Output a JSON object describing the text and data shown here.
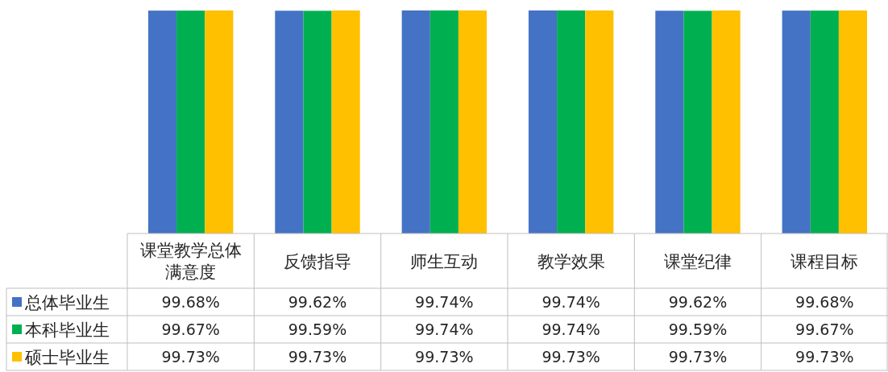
{
  "chart_data": {
    "type": "bar",
    "categories": [
      "课堂教学总体满意度",
      "反馈指导",
      "师生互动",
      "教学效果",
      "课堂纪律",
      "课程目标"
    ],
    "legend": "bottom",
    "series": [
      {
        "name": "总体毕业生",
        "color": "#4472c4",
        "values": [
          99.68,
          99.62,
          99.74,
          99.74,
          99.62,
          99.68
        ],
        "value_labels": [
          "99.68%",
          "99.62%",
          "99.74%",
          "99.74%",
          "99.62%",
          "99.68%"
        ]
      },
      {
        "name": "本科毕业生",
        "color": "#00b050",
        "values": [
          99.67,
          99.59,
          99.74,
          99.74,
          99.59,
          99.67
        ],
        "value_labels": [
          "99.67%",
          "99.59%",
          "99.74%",
          "99.74%",
          "99.59%",
          "99.67%"
        ]
      },
      {
        "name": "硕士毕业生",
        "color": "#ffc000",
        "values": [
          99.73,
          99.73,
          99.73,
          99.73,
          99.73,
          99.73
        ],
        "value_labels": [
          "99.73%",
          "99.73%",
          "99.73%",
          "99.73%",
          "99.73%",
          "99.73%"
        ]
      }
    ]
  }
}
